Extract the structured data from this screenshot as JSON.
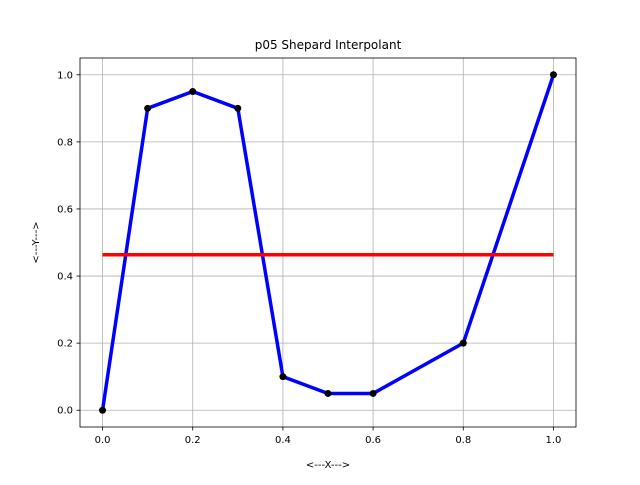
{
  "chart_data": {
    "type": "line",
    "title": "p05 Shepard Interpolant",
    "xlabel": "<---X--->",
    "ylabel": "<---Y--->",
    "xlim": [
      -0.05,
      1.05
    ],
    "ylim": [
      -0.05,
      1.05
    ],
    "xticks": [
      0.0,
      0.2,
      0.4,
      0.6,
      0.8,
      1.0
    ],
    "yticks": [
      0.0,
      0.2,
      0.4,
      0.6,
      0.8,
      1.0
    ],
    "grid": true,
    "series": [
      {
        "style": "data-polyline",
        "color": "#0000ff",
        "x": [
          0.0,
          0.1,
          0.2,
          0.3,
          0.4,
          0.5,
          0.6,
          0.8,
          1.0
        ],
        "y": [
          0.0,
          0.9,
          0.95,
          0.9,
          0.1,
          0.05,
          0.05,
          0.2,
          1.0
        ]
      },
      {
        "style": "data-points",
        "color": "#000000",
        "x": [
          0.0,
          0.1,
          0.2,
          0.3,
          0.4,
          0.5,
          0.6,
          0.8,
          1.0
        ],
        "y": [
          0.0,
          0.9,
          0.95,
          0.9,
          0.1,
          0.05,
          0.05,
          0.2,
          1.0
        ]
      },
      {
        "style": "interpolant",
        "color": "#ff0000",
        "x": [
          0.0,
          1.0
        ],
        "y": [
          0.4636,
          0.4636
        ]
      }
    ]
  }
}
